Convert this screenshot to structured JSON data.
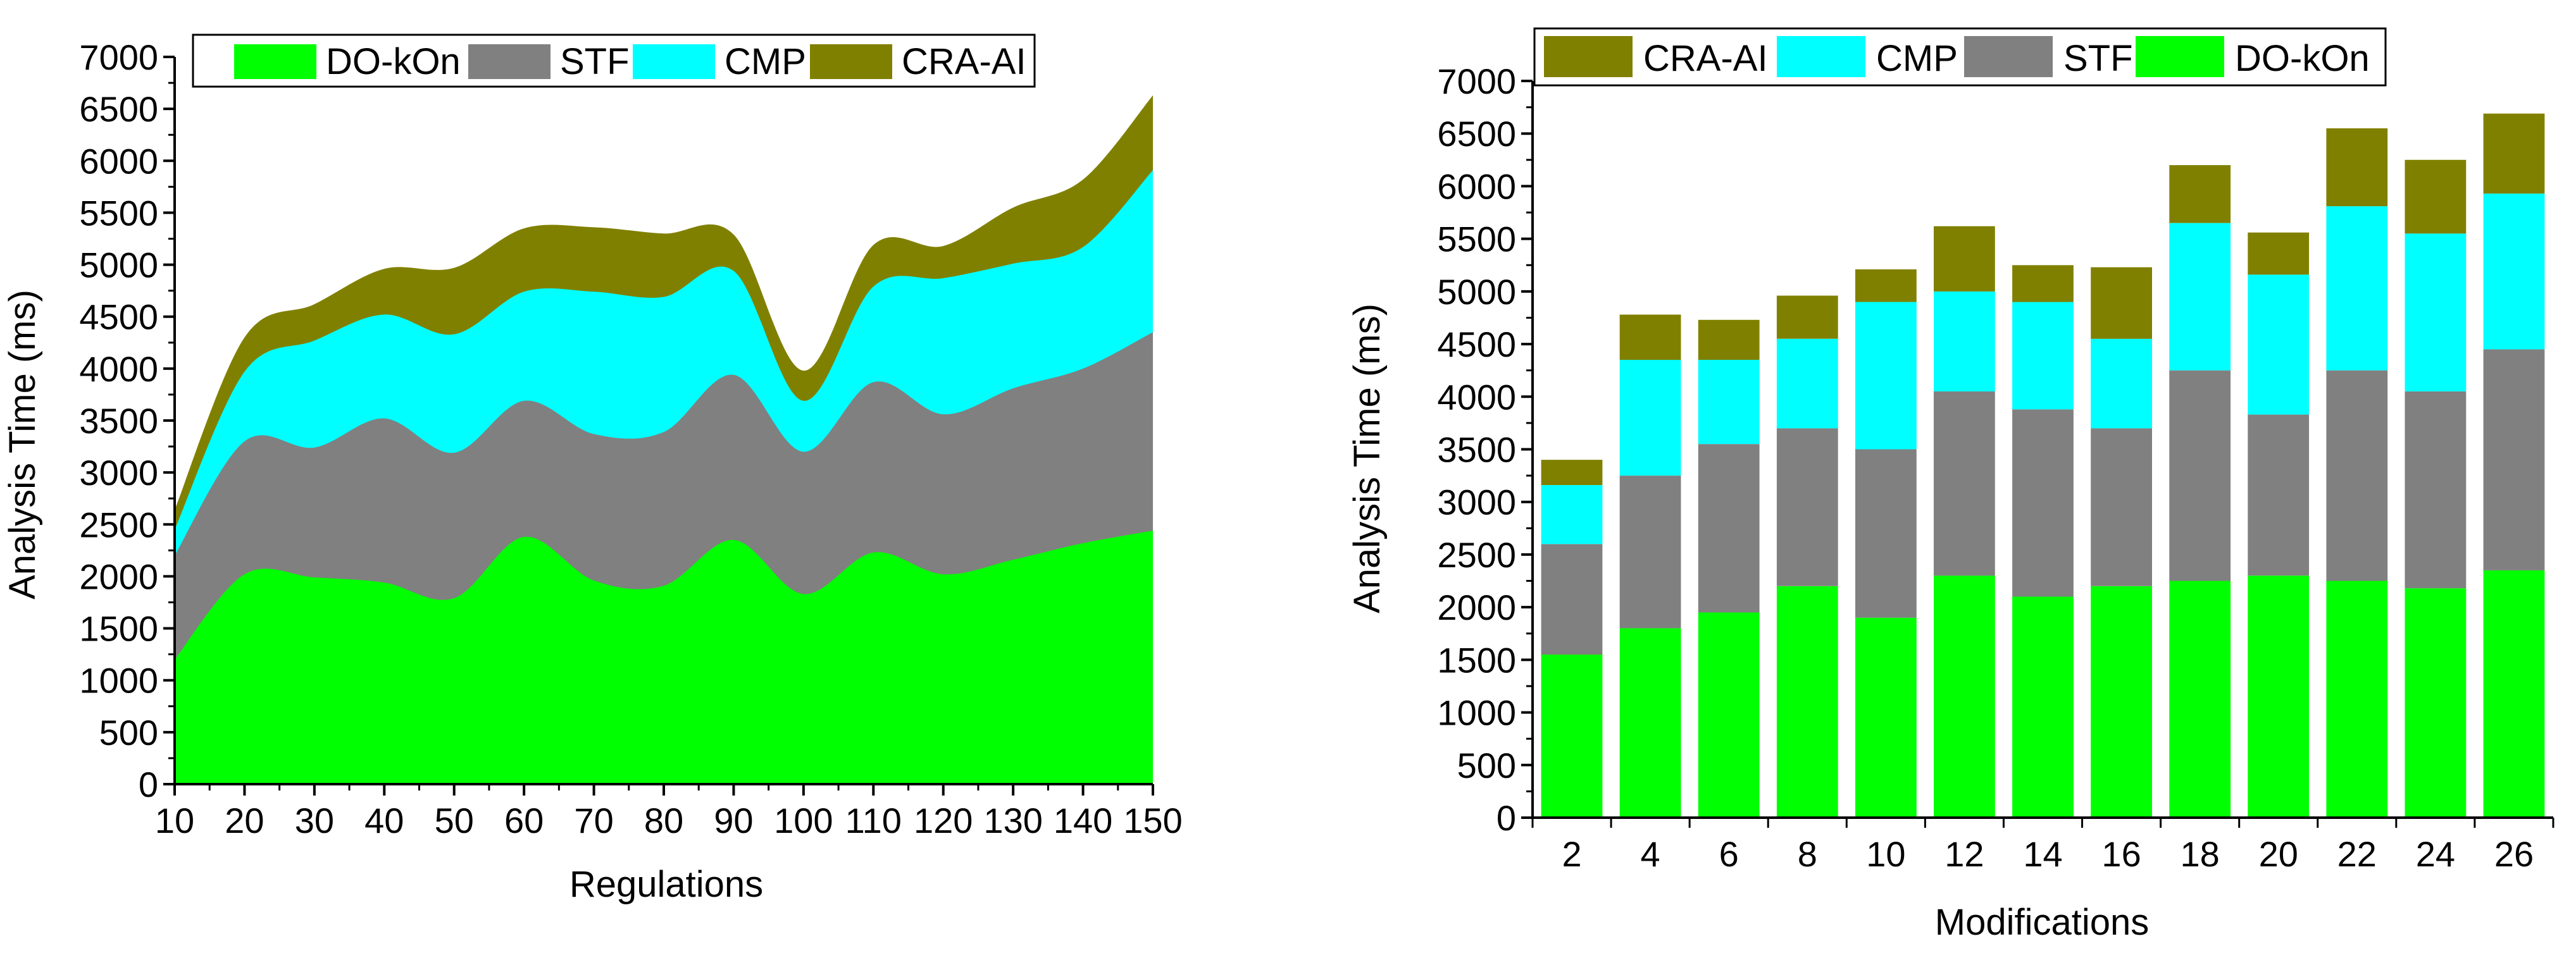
{
  "colors": {
    "DO-kOn": "#00ff00",
    "STF": "#808080",
    "CMP": "#00ffff",
    "CRA-AI": "#808000",
    "axis": "#000000"
  },
  "chart_data": [
    {
      "type": "area",
      "stacked": true,
      "smooth": true,
      "title": "",
      "xlabel": "Regulations",
      "ylabel": "Analysis Time (ms)",
      "xlim": [
        10,
        150
      ],
      "ylim": [
        0,
        7000
      ],
      "x_ticks": [
        "10",
        "20",
        "30",
        "40",
        "50",
        "60",
        "70",
        "80",
        "90",
        "100",
        "110",
        "120",
        "130",
        "140",
        "150"
      ],
      "y_ticks": [
        "0",
        "500",
        "1000",
        "1500",
        "2000",
        "2500",
        "3000",
        "3500",
        "4000",
        "4500",
        "5000",
        "5500",
        "6000",
        "6500",
        "7000"
      ],
      "legend": {
        "placement": "top",
        "entries": [
          "DO-kOn",
          "STF",
          "CMP",
          "CRA-AI"
        ]
      },
      "x": [
        10,
        20,
        30,
        40,
        50,
        60,
        70,
        80,
        90,
        100,
        110,
        120,
        130,
        140,
        150
      ],
      "series": [
        {
          "name": "DO-kOn",
          "values": [
            1200,
            2020,
            1990,
            1940,
            1790,
            2380,
            1960,
            1910,
            2350,
            1830,
            2230,
            2020,
            2160,
            2320,
            2440
          ]
        },
        {
          "name": "STF",
          "values": [
            1000,
            1280,
            1250,
            1580,
            1400,
            1310,
            1410,
            1480,
            1590,
            1370,
            1640,
            1540,
            1650,
            1680,
            1910
          ]
        },
        {
          "name": "CMP",
          "values": [
            250,
            670,
            1030,
            1000,
            1140,
            1050,
            1370,
            1300,
            1000,
            490,
            920,
            1310,
            1200,
            1170,
            1560
          ]
        },
        {
          "name": "CRA-AI",
          "values": [
            190,
            330,
            350,
            440,
            640,
            610,
            620,
            610,
            350,
            290,
            400,
            310,
            540,
            650,
            720
          ]
        }
      ]
    },
    {
      "type": "bar",
      "stacked": true,
      "title": "",
      "xlabel": "Modifications",
      "ylabel": "Analysis Time (ms)",
      "ylim": [
        0,
        7000
      ],
      "y_ticks": [
        "0",
        "500",
        "1000",
        "1500",
        "2000",
        "2500",
        "3000",
        "3500",
        "4000",
        "4500",
        "5000",
        "5500",
        "6000",
        "6500",
        "7000"
      ],
      "categories": [
        "2",
        "4",
        "6",
        "8",
        "10",
        "12",
        "14",
        "16",
        "18",
        "20",
        "22",
        "24",
        "26"
      ],
      "legend": {
        "placement": "top",
        "entries": [
          "CRA-AI",
          "CMP",
          "STF",
          "DO-kOn"
        ]
      },
      "series": [
        {
          "name": "DO-kOn",
          "values": [
            1550,
            1800,
            1950,
            2200,
            1900,
            2300,
            2100,
            2200,
            2250,
            2300,
            2250,
            2180,
            2350
          ]
        },
        {
          "name": "STF",
          "values": [
            1050,
            1450,
            1600,
            1500,
            1600,
            1750,
            1780,
            1500,
            2000,
            1530,
            2000,
            1870,
            2100
          ]
        },
        {
          "name": "CMP",
          "values": [
            560,
            1100,
            800,
            850,
            1400,
            950,
            1020,
            850,
            1400,
            1330,
            1560,
            1500,
            1480
          ]
        },
        {
          "name": "CRA-AI",
          "values": [
            240,
            430,
            380,
            410,
            310,
            620,
            350,
            680,
            550,
            400,
            740,
            700,
            760
          ]
        }
      ]
    }
  ]
}
